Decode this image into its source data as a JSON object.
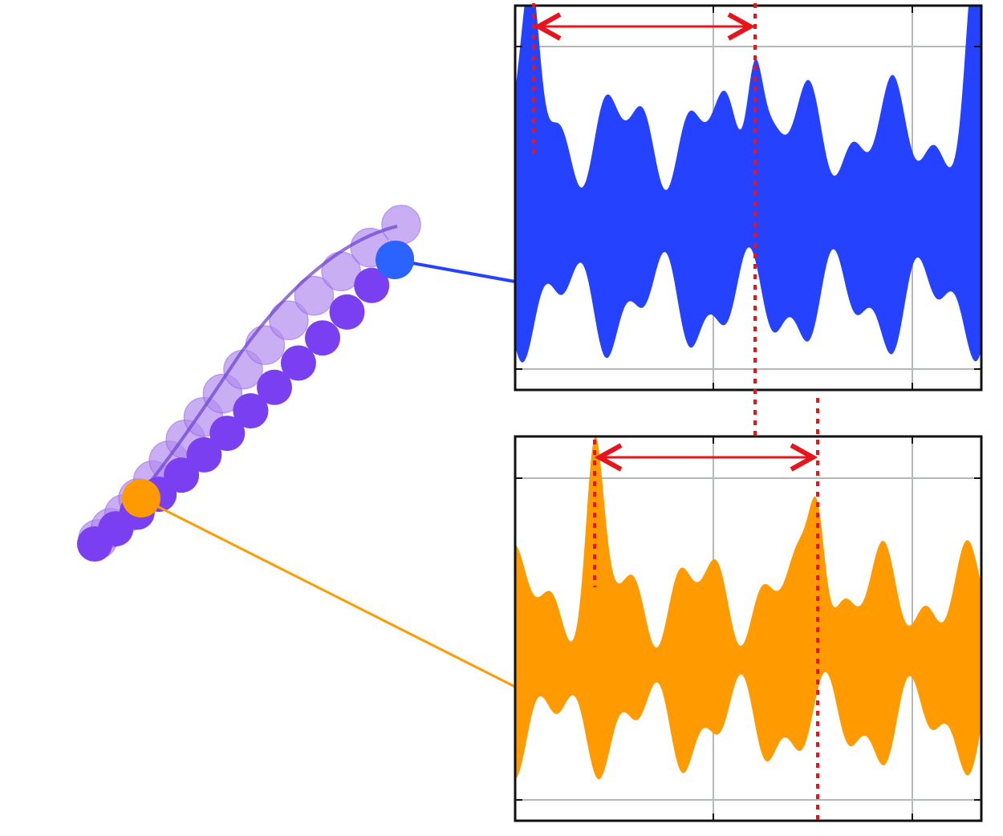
{
  "colors": {
    "background": "#ffffff",
    "chain_purple": "#7b3ff2",
    "chain_purple_faded": "#b48cf0",
    "blue_mode": "#2442ff",
    "orange_mode": "#ff9a00",
    "marker_red": "#e8141c",
    "grid_gray": "#b4b8b8",
    "frame_black": "#111111"
  },
  "chain": {
    "bead_count_front": 14,
    "bead_count_back": 16,
    "highlight_beads": [
      "blue-bead",
      "orange-bead"
    ]
  },
  "panels": [
    {
      "name": "top-signal-panel",
      "fill": "#2442ff",
      "period_marker": "double-arrow",
      "grid": true
    },
    {
      "name": "bottom-signal-panel",
      "fill": "#ff9a00",
      "period_marker": "double-arrow",
      "grid": true
    }
  ]
}
